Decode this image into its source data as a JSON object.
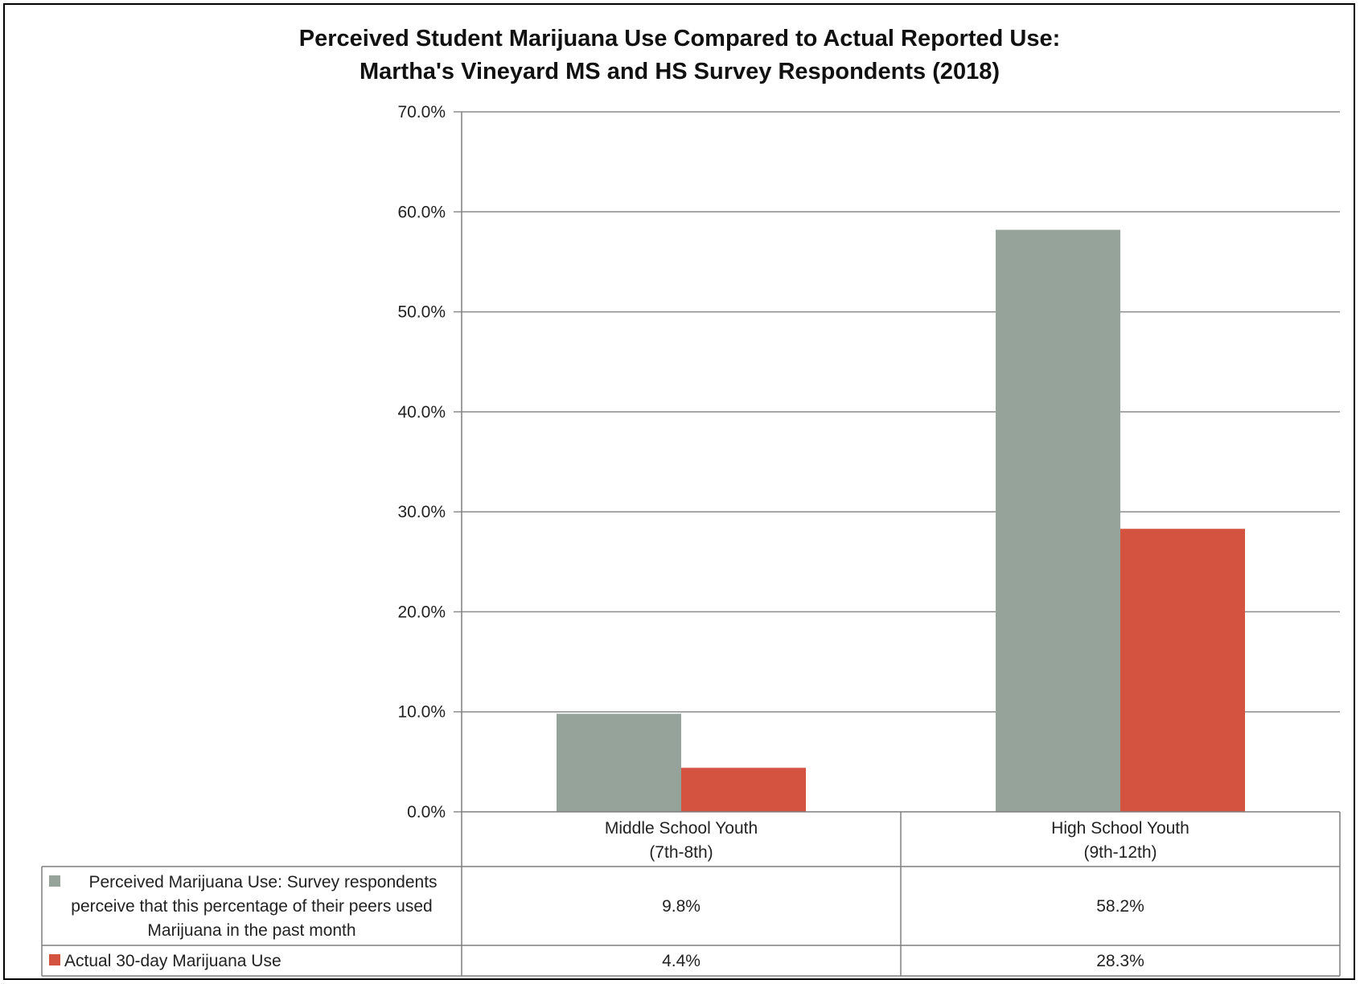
{
  "chart_data": {
    "type": "bar",
    "title": "Perceived Student Marijuana Use Compared to Actual Reported Use:",
    "subtitle": "Martha's Vineyard MS and HS Survey Respondents (2018)",
    "categories": [
      {
        "line1": "Middle School Youth",
        "line2": "(7th-8th)"
      },
      {
        "line1": "High School Youth",
        "line2": "(9th-12th)"
      }
    ],
    "ylim": [
      0,
      70
    ],
    "yticks": [
      "0.0%",
      "10.0%",
      "20.0%",
      "30.0%",
      "40.0%",
      "50.0%",
      "60.0%",
      "70.0%"
    ],
    "grid": true,
    "legend_position": "data table below chart",
    "series": [
      {
        "name_lines": [
          "Perceived Marijuana Use: Survey respondents",
          "perceive that this percentage of their peers used",
          "Marijuana in the past month"
        ],
        "values": [
          9.8,
          58.2
        ],
        "labels": [
          "9.8%",
          "58.2%"
        ],
        "color": "#95a39b"
      },
      {
        "name_lines": [
          "Actual 30-day Marijuana Use"
        ],
        "values": [
          4.4,
          28.3
        ],
        "labels": [
          "4.4%",
          "28.3%"
        ],
        "color": "#d35340"
      }
    ]
  }
}
